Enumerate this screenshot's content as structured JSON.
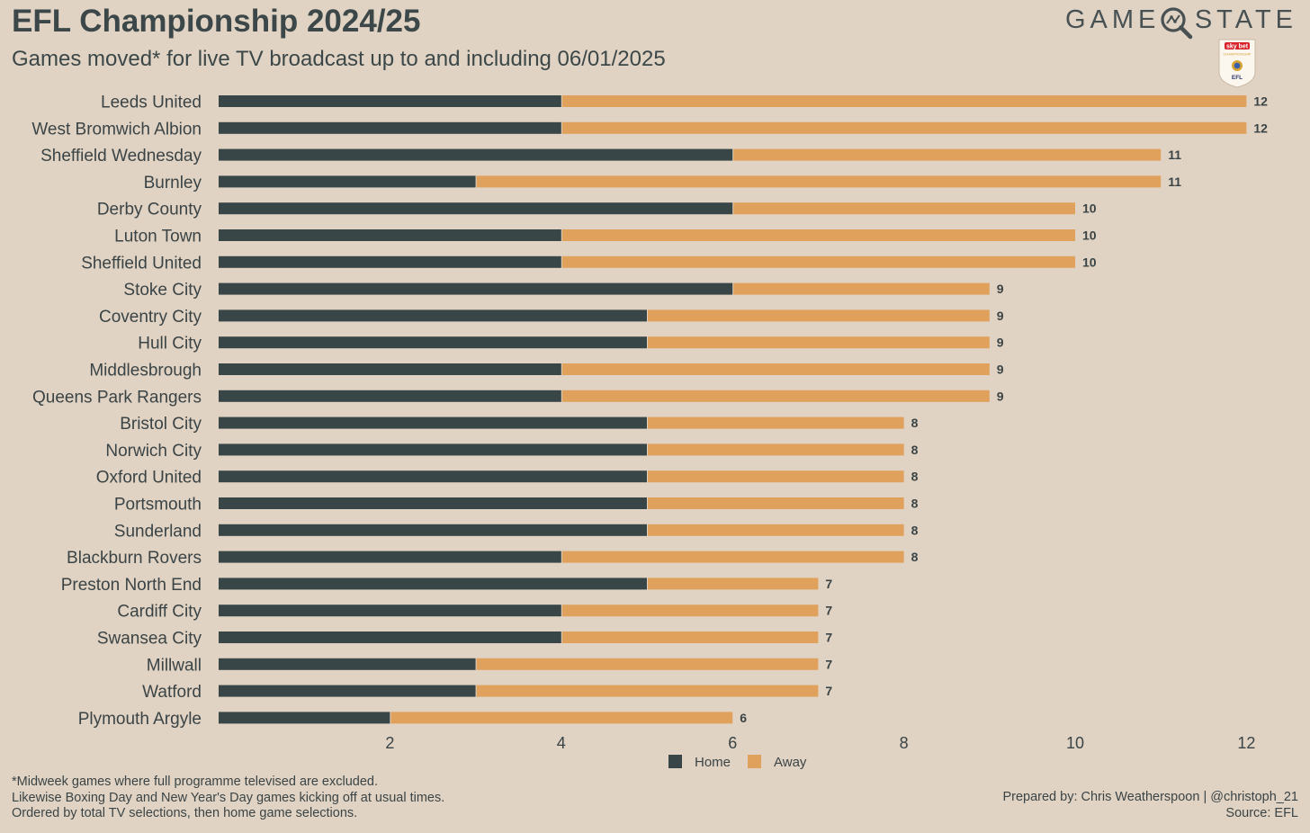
{
  "header": {
    "title": "EFL Championship 2024/25",
    "subtitle": "Games moved* for live TV broadcast up to and including 06/01/2025"
  },
  "brand": {
    "left": "GAME",
    "right": "STATE",
    "logo_icon": "magnifier-icon",
    "badge_top": "sky bet",
    "badge_mid": "CHAMPIONSHIP",
    "badge_bottom": "EFL"
  },
  "colors": {
    "background": "#e1d3c3",
    "home": "#384647",
    "away": "#dfa15c",
    "text": "#3a4446"
  },
  "chart_data": {
    "type": "bar",
    "orientation": "horizontal",
    "stacked": true,
    "categories": [
      "Leeds United",
      "West Bromwich Albion",
      "Sheffield Wednesday",
      "Burnley",
      "Derby County",
      "Luton Town",
      "Sheffield United",
      "Stoke City",
      "Coventry City",
      "Hull City",
      "Middlesbrough",
      "Queens Park Rangers",
      "Bristol City",
      "Norwich City",
      "Oxford United",
      "Portsmouth",
      "Sunderland",
      "Blackburn Rovers",
      "Preston North End",
      "Cardiff City",
      "Swansea City",
      "Millwall",
      "Watford",
      "Plymouth Argyle"
    ],
    "series": [
      {
        "name": "Home",
        "values": [
          4,
          4,
          6,
          3,
          6,
          4,
          4,
          6,
          5,
          5,
          4,
          4,
          5,
          5,
          5,
          5,
          5,
          4,
          5,
          4,
          4,
          3,
          3,
          2
        ]
      },
      {
        "name": "Away",
        "values": [
          8,
          8,
          5,
          8,
          4,
          6,
          6,
          3,
          4,
          4,
          5,
          5,
          3,
          3,
          3,
          3,
          3,
          4,
          2,
          3,
          3,
          4,
          4,
          4
        ]
      }
    ],
    "totals": [
      12,
      12,
      11,
      11,
      10,
      10,
      10,
      9,
      9,
      9,
      9,
      9,
      8,
      8,
      8,
      8,
      8,
      8,
      7,
      7,
      7,
      7,
      7,
      6
    ],
    "xticks": [
      "2",
      "4",
      "6",
      "8",
      "10",
      "12"
    ],
    "xlim": [
      0,
      12
    ],
    "grid": false,
    "legend_position": "bottom-center"
  },
  "footer": {
    "footnote": [
      "*Midweek games where full programme televised are excluded.",
      "Likewise Boxing Day and New Year's Day games kicking off at usual times.",
      "Ordered by total TV selections, then home game selections."
    ],
    "credit": "Prepared by: Chris Weatherspoon | @christoph_21",
    "source": "Source: EFL"
  }
}
